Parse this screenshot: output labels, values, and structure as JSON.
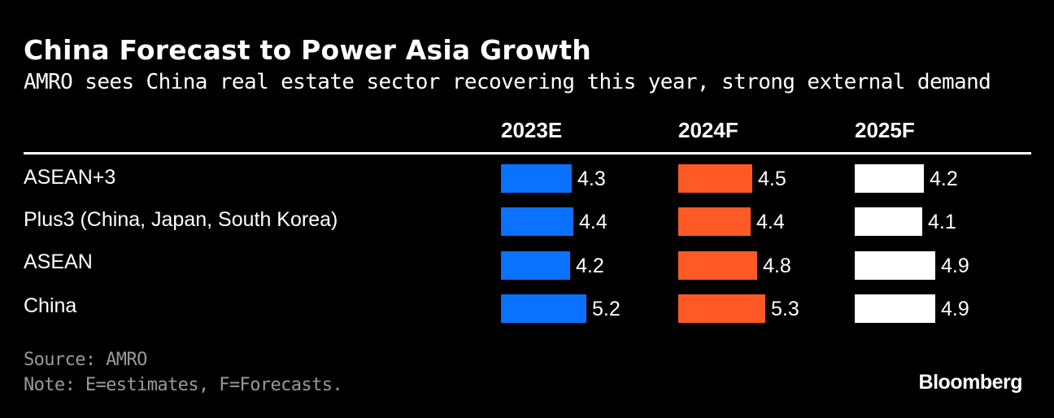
{
  "chart_data": {
    "type": "table",
    "title": "China Forecast to Power Asia Growth",
    "subtitle": "AMRO sees China real estate sector recovering this year, strong external demand",
    "columns": [
      "2023E",
      "2024F",
      "2025F"
    ],
    "column_colors": [
      "#0A72FF",
      "#FF5A26",
      "#FFFFFF"
    ],
    "rows": [
      {
        "label": "ASEAN+3",
        "values": [
          4.3,
          4.5,
          4.2
        ]
      },
      {
        "label": "Plus3 (China, Japan, South Korea)",
        "values": [
          4.4,
          4.4,
          4.1
        ]
      },
      {
        "label": "ASEAN",
        "values": [
          4.2,
          4.8,
          4.9
        ]
      },
      {
        "label": "China",
        "values": [
          5.2,
          5.3,
          4.9
        ]
      }
    ],
    "value_labels": [
      [
        "4.3",
        "4.5",
        "4.2"
      ],
      [
        "4.4",
        "4.4",
        "4.1"
      ],
      [
        "4.2",
        "4.8",
        "4.9"
      ],
      [
        "5.2",
        "5.3",
        "4.9"
      ]
    ]
  },
  "footer": {
    "source": "Source: AMRO",
    "note": "Note: E=estimates, F=Forecasts.",
    "brand": "Bloomberg"
  }
}
